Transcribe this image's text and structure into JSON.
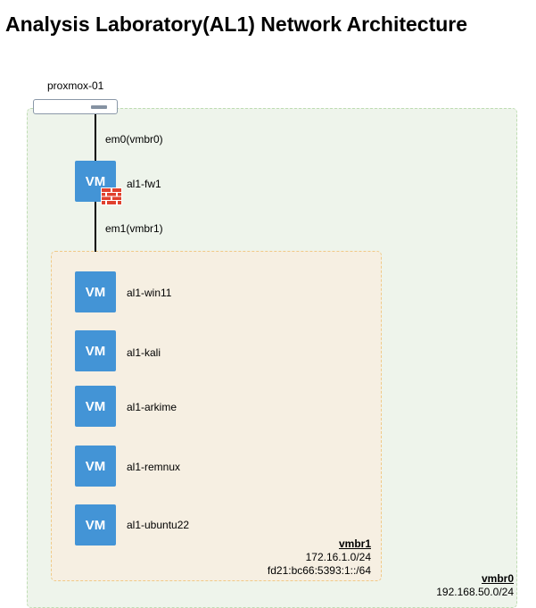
{
  "title": "Analysis Laboratory(AL1) Network Architecture",
  "host": {
    "label": "proxmox-01",
    "icon": "server-icon"
  },
  "links": {
    "upper_label": "em0(vmbr0)",
    "lower_label": "em1(vmbr1)"
  },
  "vm_badge": "VM",
  "firewall": {
    "name": "al1-fw1",
    "icon": "firewall-icon"
  },
  "vms": [
    {
      "name": "al1-win11"
    },
    {
      "name": "al1-kali"
    },
    {
      "name": "al1-arkime"
    },
    {
      "name": "al1-remnux"
    },
    {
      "name": "al1-ubuntu22"
    }
  ],
  "networks": {
    "inner": {
      "name": "vmbr1",
      "ipv4": "172.16.1.0/24",
      "ipv6": "fd21:bc66:5393:1::/64"
    },
    "outer": {
      "name": "vmbr0",
      "ipv4": "192.168.50.0/24"
    }
  },
  "colors": {
    "vm_fill": "#4394d6",
    "outer_zone_fill": "#eef4eb",
    "outer_zone_border": "#bfdcb3",
    "inner_zone_fill": "#f6efe2",
    "inner_zone_border": "#f0c987",
    "firewall_brick": "#e0412e"
  }
}
